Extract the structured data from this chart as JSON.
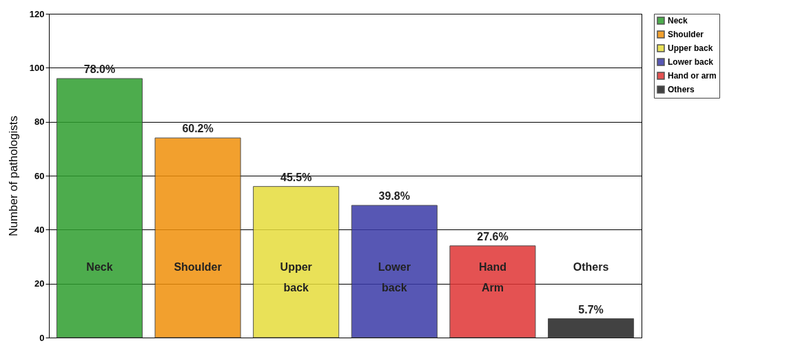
{
  "chart_data": {
    "type": "bar",
    "ylabel": "Number of pathologists",
    "categories": [
      "Neck",
      "Shoulder",
      "Upper back",
      "Lower back",
      "Hand Arm",
      "Others"
    ],
    "series": [
      {
        "name": "Neck",
        "color": "#2e9e2e",
        "values": [
          96,
          null,
          null,
          null,
          null,
          null
        ]
      },
      {
        "name": "Shoulder",
        "color": "#f0900a",
        "values": [
          null,
          74,
          null,
          null,
          null,
          null
        ]
      },
      {
        "name": "Upper back",
        "color": "#e6dc3c",
        "values": [
          null,
          null,
          56,
          null,
          null,
          null
        ]
      },
      {
        "name": "Lower back",
        "color": "#3a3aa8",
        "values": [
          null,
          null,
          null,
          49,
          null,
          null
        ]
      },
      {
        "name": "Hand or arm",
        "color": "#e03434",
        "values": [
          null,
          null,
          null,
          null,
          34,
          null
        ]
      },
      {
        "name": "Others",
        "color": "#222222",
        "values": [
          null,
          null,
          null,
          null,
          null,
          7
        ]
      }
    ],
    "annotations": [
      {
        "text": "78.0%",
        "x": "Neck",
        "y": 96
      },
      {
        "text": "60.2%",
        "x": "Shoulder",
        "y": 74
      },
      {
        "text": "45.5%",
        "x": "Upper back",
        "y": 56
      },
      {
        "text": "39.8%",
        "x": "Lower back",
        "y": 49
      },
      {
        "text": "27.6%",
        "x": "Hand Arm",
        "y": 34
      },
      {
        "text": "5.7%",
        "x": "Others",
        "y": 7
      }
    ],
    "ylim": [
      0,
      120
    ],
    "yticks": [
      0,
      20,
      40,
      60,
      80,
      100,
      120
    ],
    "grid": "y",
    "legend": "right",
    "tick_labels": "y"
  }
}
